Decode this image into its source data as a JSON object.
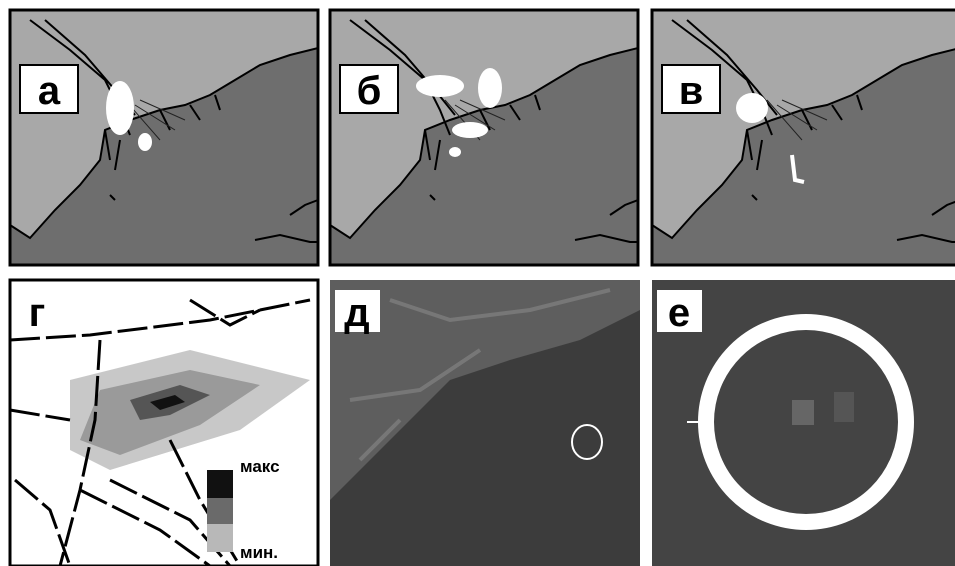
{
  "panels": [
    {
      "label": "а"
    },
    {
      "label": "б"
    },
    {
      "label": "в"
    },
    {
      "label": "г"
    },
    {
      "label": "д"
    },
    {
      "label": "е"
    }
  ],
  "legend": {
    "max": "макс",
    "min": "мин."
  }
}
